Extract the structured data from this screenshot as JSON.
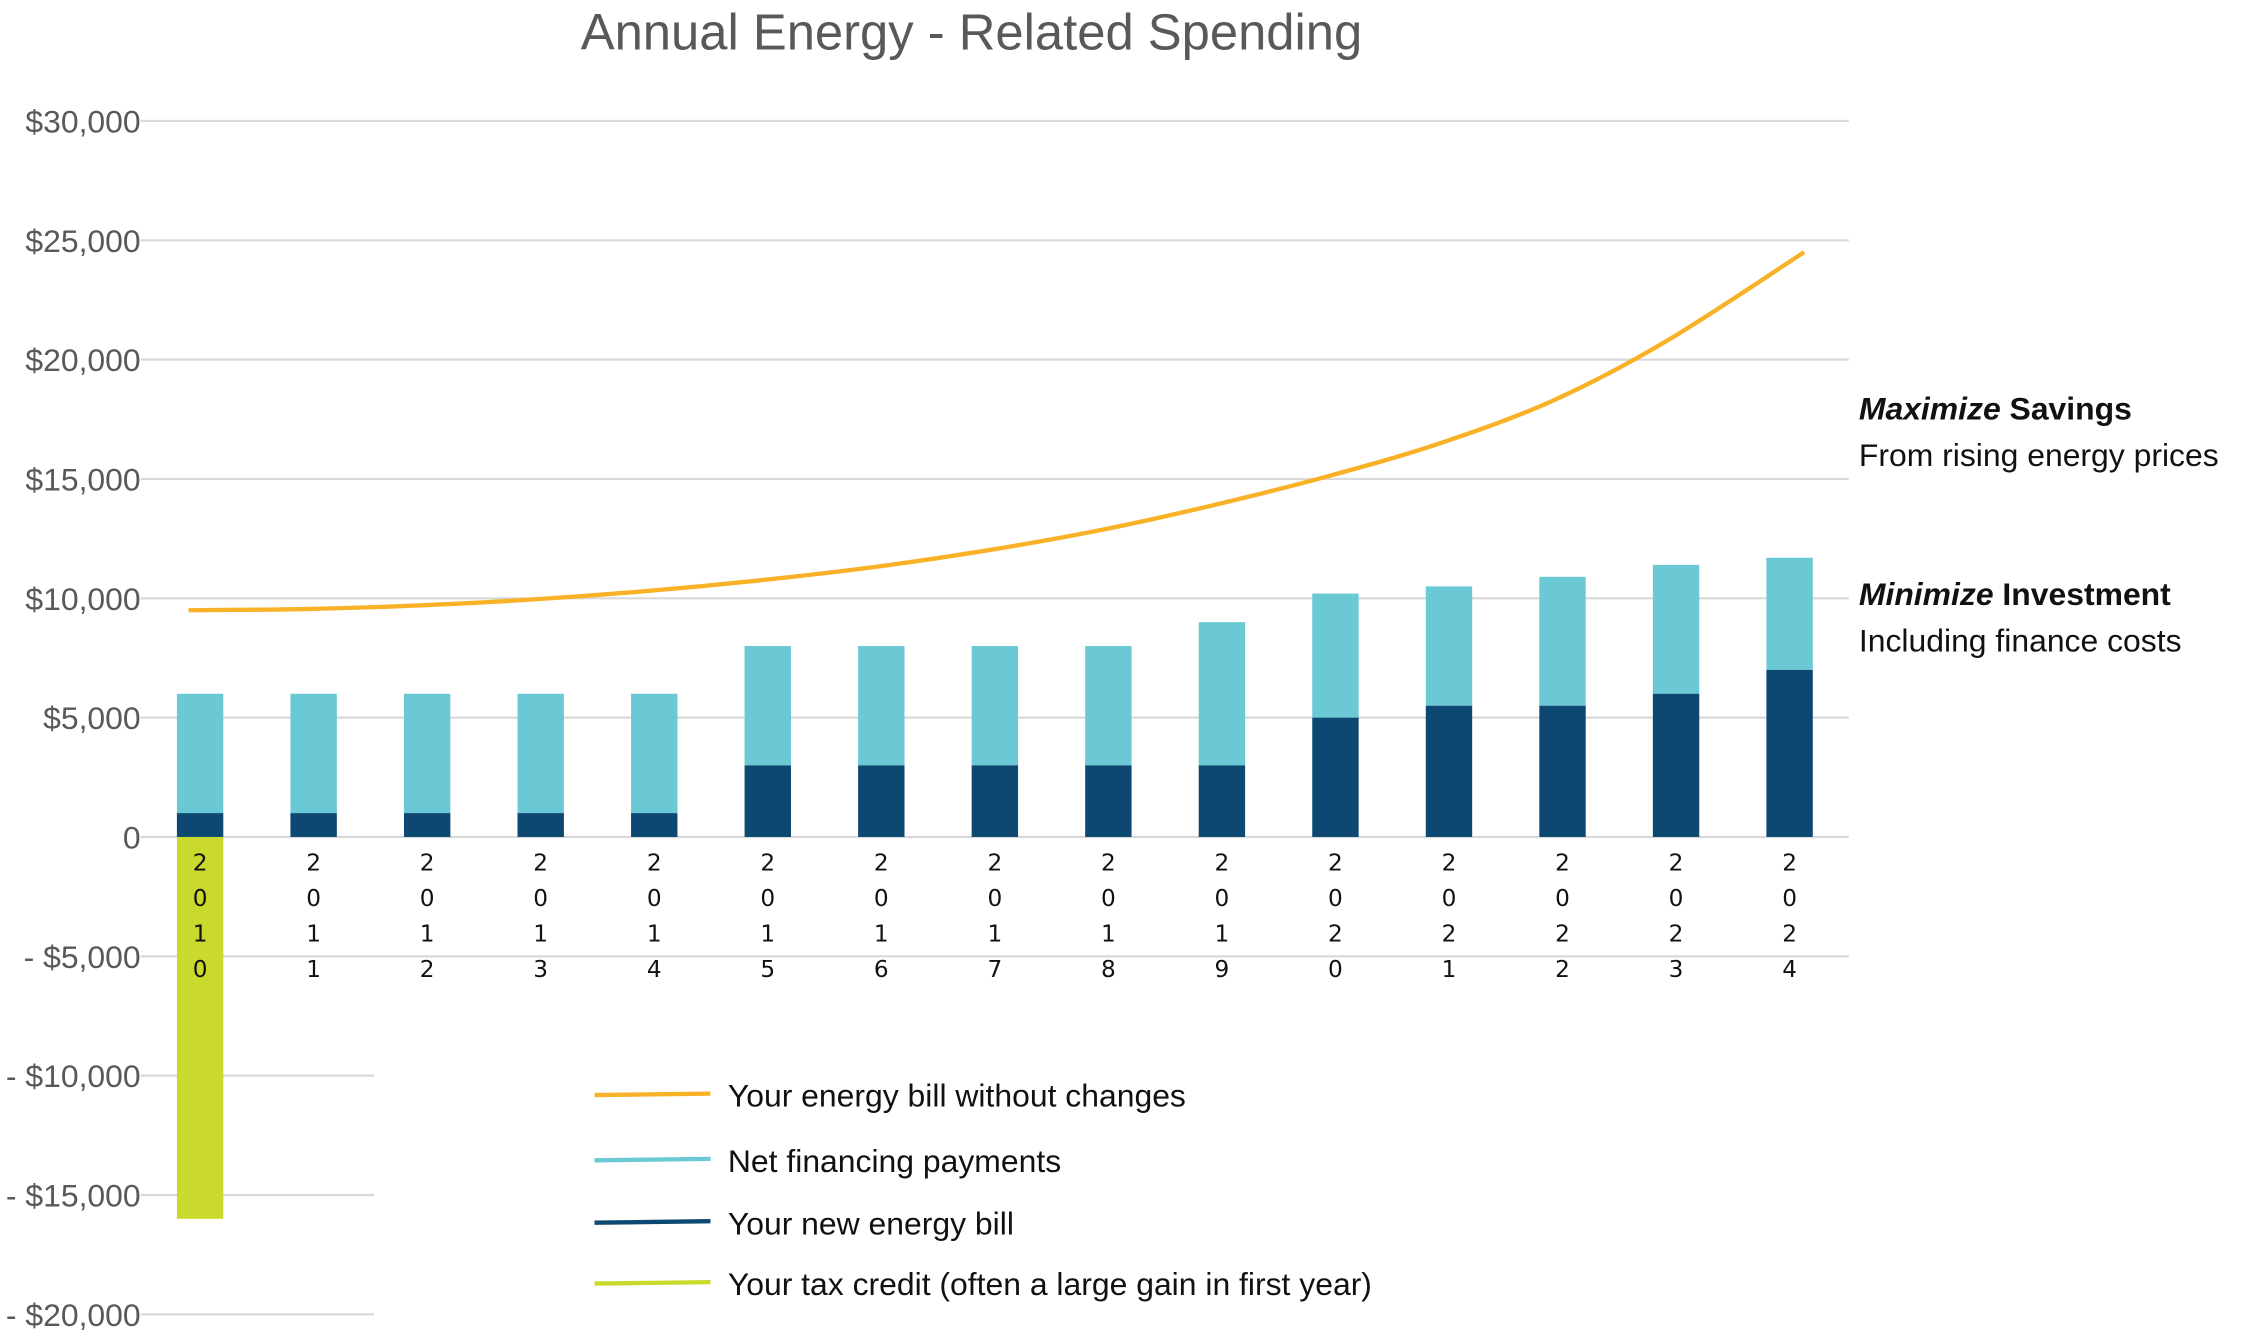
{
  "chart_data": {
    "type": "bar",
    "title": "Annual Energy - Related  Spending",
    "categories": [
      "2010",
      "2011",
      "2012",
      "2013",
      "2014",
      "2015",
      "2016",
      "2017",
      "2018",
      "2019",
      "2020",
      "2021",
      "2022",
      "2023",
      "2024"
    ],
    "ylim": [
      -20000,
      30000
    ],
    "yticks": [
      30000,
      25000,
      20000,
      15000,
      10000,
      5000,
      0,
      -5000,
      -10000,
      -15000,
      -20000
    ],
    "ytick_labels": [
      "$30,000",
      "$25,000",
      "$20,000",
      "$15,000",
      "$10,000",
      "$5,000",
      "0",
      "- $5,000",
      "- $10,000",
      "- $15,000",
      "- $20,000"
    ],
    "grid": true,
    "legend_position": "bottom-center",
    "series": [
      {
        "name": "Your energy bill without changes",
        "type": "line",
        "color": "#F9B128",
        "values": [
          9500,
          9550,
          9700,
          9950,
          10300,
          10750,
          11300,
          12000,
          12850,
          13900,
          15100,
          16500,
          18300,
          20800,
          24500
        ]
      },
      {
        "name": "Net financing payments",
        "type": "stacked-bar",
        "color": "#6AC9D4",
        "values": [
          5000,
          5000,
          5000,
          5000,
          5000,
          5000,
          5000,
          5000,
          5000,
          6000,
          5200,
          5000,
          5400,
          5400,
          4700
        ]
      },
      {
        "name": "Your new energy bill",
        "type": "stacked-bar",
        "color": "#0C4872",
        "values": [
          1000,
          1000,
          1000,
          1000,
          1000,
          3000,
          3000,
          3000,
          3000,
          3000,
          5000,
          5500,
          5500,
          6000,
          7000
        ]
      },
      {
        "name": "Your tax credit (often a large gain in first year)",
        "type": "bar",
        "color": "#C9DA2C",
        "values": [
          -16000,
          0,
          0,
          0,
          0,
          0,
          0,
          0,
          0,
          0,
          0,
          0,
          0,
          0,
          0
        ]
      }
    ],
    "annotations": [
      {
        "emph": "Maximize",
        "rest": " Savings",
        "sub": "From rising energy prices"
      },
      {
        "emph": "Minimize",
        "rest": " Investment",
        "sub": "Including finance costs"
      }
    ]
  }
}
